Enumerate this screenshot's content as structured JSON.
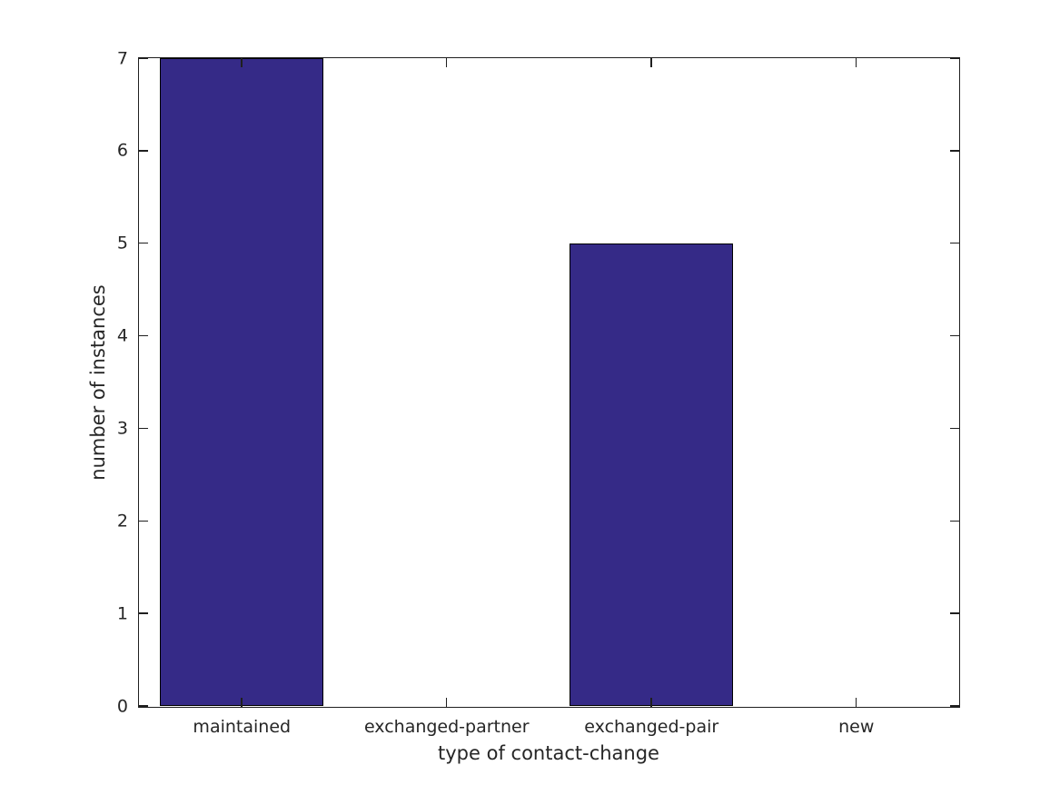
{
  "chart_data": {
    "type": "bar",
    "title": "",
    "categories": [
      "maintained",
      "exchanged-partner",
      "exchanged-pair",
      "new"
    ],
    "values": [
      7,
      0,
      5,
      0
    ],
    "xlabel": "type of contact-change",
    "ylabel": "number of instances",
    "ylim": [
      0,
      7
    ],
    "yticks": [
      0,
      1,
      2,
      3,
      4,
      5,
      6,
      7
    ],
    "bar_width_fraction": 0.8,
    "bar_color": "#352A87",
    "bar_edge_color": "#000000",
    "axis_color": "#1F1F1F",
    "text_color": "#262626",
    "background_color": "#FFFFFF",
    "grid": false,
    "legend_position": "none"
  }
}
